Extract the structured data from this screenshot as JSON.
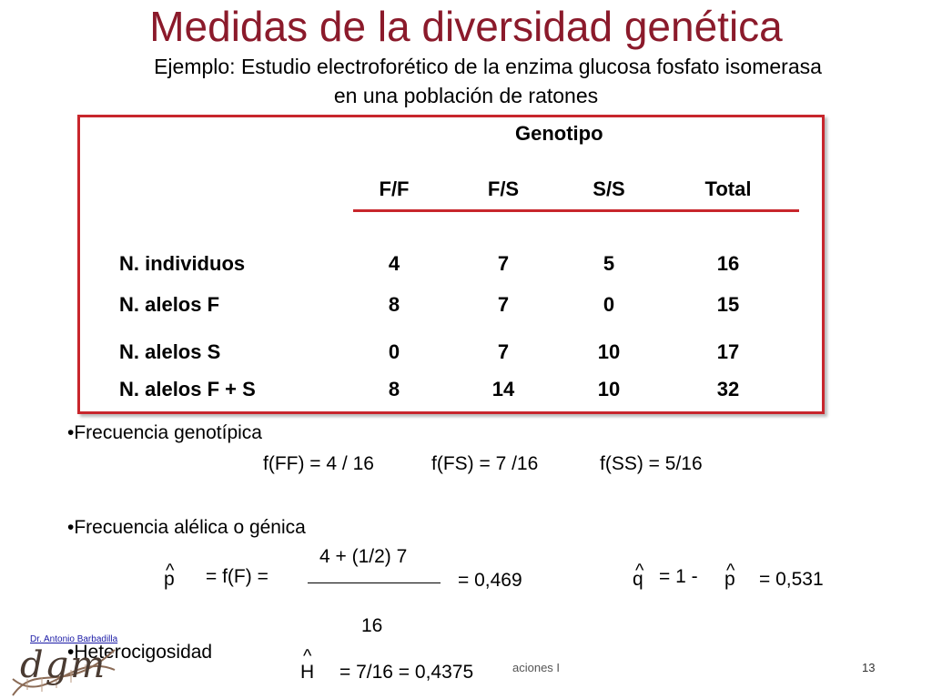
{
  "title": "Medidas de la diversidad genética",
  "subtitle": {
    "line1": "Ejemplo: Estudio electroforético de la enzima glucosa fosfato isomerasa",
    "line2": "en una población de ratones"
  },
  "table": {
    "group_header": "Genotipo",
    "columns": [
      "F/F",
      "F/S",
      "S/S",
      "Total"
    ],
    "rows": [
      {
        "label": "N. individuos",
        "values": [
          "4",
          "7",
          "5",
          "16"
        ]
      },
      {
        "label": "N. alelos F",
        "values": [
          "8",
          "7",
          "0",
          "15"
        ]
      },
      {
        "label": "N. alelos S",
        "values": [
          "0",
          "7",
          "10",
          "17"
        ]
      },
      {
        "label": "N. alelos F + S",
        "values": [
          "8",
          "14",
          "10",
          "32"
        ]
      }
    ]
  },
  "genotypic": {
    "bullet": "•Frecuencia genotípica",
    "ff": "f(FF) = 4 / 16",
    "fs": "f(FS) = 7 /16",
    "ss": "f(SS) = 5/16"
  },
  "allelic": {
    "bullet": "•Frecuencia alélica o génica",
    "p_symbol": "p",
    "hat": "^",
    "p_eq": "= f(F) =",
    "numerator": "4 + (1/2) 7",
    "denominator": "16",
    "p_result": "= 0,469",
    "q_symbol": "q",
    "q_eq": "= 1 -",
    "q_p_symbol": "p",
    "q_result": "= 0,531"
  },
  "heterozygosity": {
    "bullet": "•Heterocigosidad",
    "h_symbol": "H",
    "h_result": "= 7/16 = 0,4375"
  },
  "footer": {
    "author": "Dr. Antonio Barbadilla",
    "logo_text": "dgm",
    "partial_text": "aciones I",
    "page_number": "13"
  },
  "colors": {
    "title": "#8B1A2B",
    "box_border": "#C8262C"
  }
}
